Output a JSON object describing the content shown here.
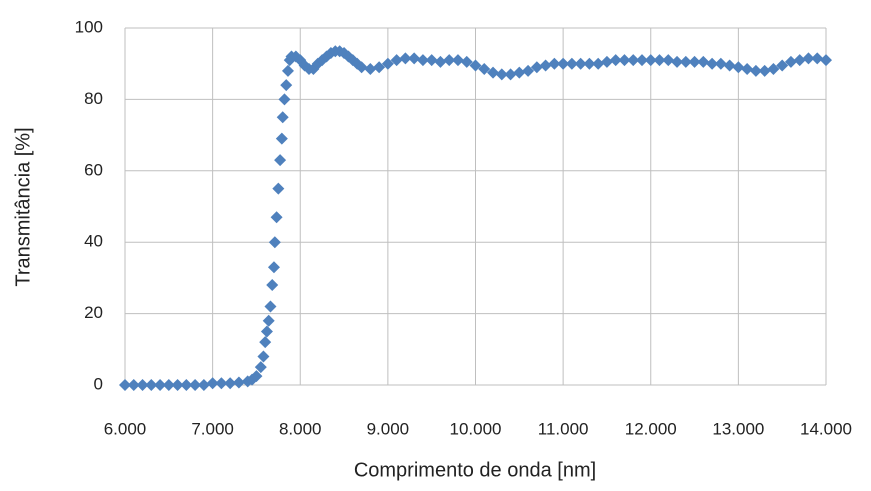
{
  "chart_data": {
    "type": "scatter",
    "x_label": "Comprimento de onda [nm]",
    "y_label": "Transmitância [%]",
    "xlim": [
      6000,
      14000
    ],
    "xticks": [
      {
        "value": 6000,
        "label": "6.000"
      },
      {
        "value": 7000,
        "label": "7.000"
      },
      {
        "value": 8000,
        "label": "8.000"
      },
      {
        "value": 9000,
        "label": "9.000"
      },
      {
        "value": 10000,
        "label": "10.000"
      },
      {
        "value": 11000,
        "label": "11.000"
      },
      {
        "value": 12000,
        "label": "12.000"
      },
      {
        "value": 13000,
        "label": "13.000"
      },
      {
        "value": 14000,
        "label": "14.000"
      }
    ],
    "ylim": [
      0,
      100
    ],
    "yticks": [
      0,
      20,
      40,
      60,
      80,
      100
    ],
    "grid": true,
    "series": [
      {
        "color": "#4f81bd",
        "x": [
          6000,
          6100,
          6200,
          6300,
          6400,
          6500,
          6600,
          6700,
          6800,
          6900,
          7000,
          7100,
          7200,
          7300,
          7400,
          7450,
          7500,
          7550,
          7580,
          7600,
          7620,
          7640,
          7660,
          7680,
          7700,
          7710,
          7730,
          7750,
          7770,
          7790,
          7800,
          7820,
          7840,
          7860,
          7880,
          7900,
          7950,
          8000,
          8050,
          8100,
          8150,
          8200,
          8250,
          8300,
          8350,
          8400,
          8450,
          8500,
          8550,
          8600,
          8650,
          8700,
          8800,
          8900,
          9000,
          9100,
          9200,
          9300,
          9400,
          9500,
          9600,
          9700,
          9800,
          9900,
          10000,
          10100,
          10200,
          10300,
          10400,
          10500,
          10600,
          10700,
          10800,
          10900,
          11000,
          11100,
          11200,
          11300,
          11400,
          11500,
          11600,
          11700,
          11800,
          11900,
          12000,
          12100,
          12200,
          12300,
          12400,
          12500,
          12600,
          12700,
          12800,
          12900,
          13000,
          13100,
          13200,
          13300,
          13400,
          13500,
          13600,
          13700,
          13800,
          13900,
          14000
        ],
        "values": [
          0,
          0,
          0,
          0,
          0,
          0,
          0,
          0,
          0,
          0,
          0.5,
          0.5,
          0.5,
          0.7,
          1,
          1.5,
          2.5,
          5,
          8,
          12,
          15,
          18,
          22,
          28,
          33,
          40,
          47,
          55,
          63,
          69,
          75,
          80,
          84,
          88,
          91,
          92,
          92,
          91,
          89.5,
          88.5,
          88.5,
          90,
          91,
          92,
          93,
          93.5,
          93.5,
          93,
          92,
          91,
          90,
          89,
          88.5,
          89,
          90,
          91,
          91.5,
          91.5,
          91,
          91,
          90.5,
          91,
          91,
          90.5,
          89.5,
          88.5,
          87.5,
          87,
          87,
          87.5,
          88,
          89,
          89.5,
          90,
          90,
          90,
          90,
          90,
          90,
          90.5,
          91,
          91,
          91,
          91,
          91,
          91,
          91,
          90.5,
          90.5,
          90.5,
          90.5,
          90,
          90,
          89.5,
          89,
          88.5,
          88,
          88,
          88.5,
          89.5,
          90.5,
          91,
          91.5,
          91.5,
          91
        ]
      }
    ]
  }
}
